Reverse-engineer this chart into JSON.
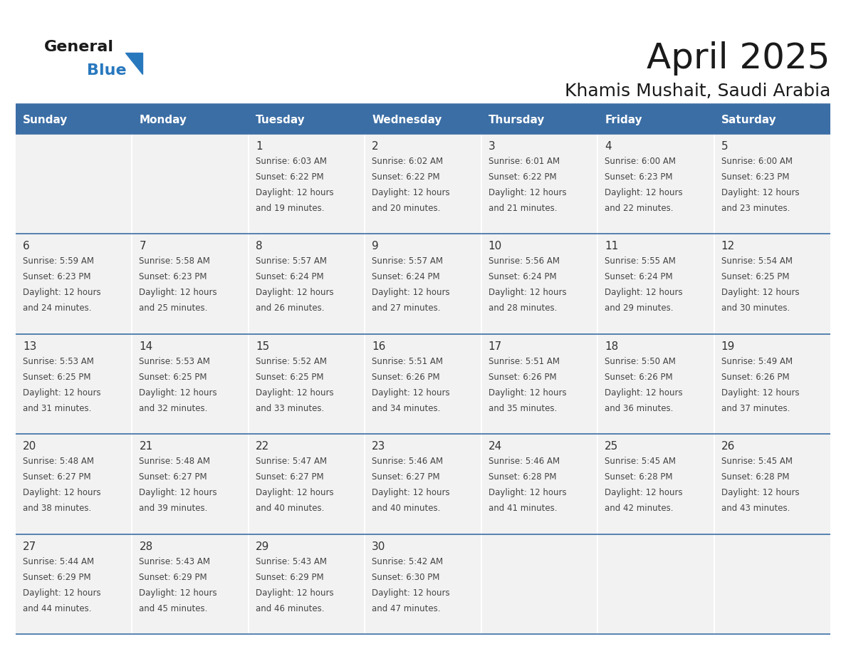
{
  "title": "April 2025",
  "subtitle": "Khamis Mushait, Saudi Arabia",
  "header_color": "#3B6EA5",
  "header_text_color": "#FFFFFF",
  "bg_color": "#FFFFFF",
  "cell_bg": "#F2F2F2",
  "day_names": [
    "Sunday",
    "Monday",
    "Tuesday",
    "Wednesday",
    "Thursday",
    "Friday",
    "Saturday"
  ],
  "text_color": "#333333",
  "line_color": "#3B6EA5",
  "logo_general_color": "#1a1a1a",
  "logo_blue_color": "#2878BE",
  "logo_triangle_color": "#2878BE",
  "title_fontsize": 36,
  "subtitle_fontsize": 18,
  "header_fontsize": 11,
  "daynum_fontsize": 11,
  "cell_fontsize": 8.5,
  "calendar_data": [
    [
      {
        "day": null,
        "text": ""
      },
      {
        "day": null,
        "text": ""
      },
      {
        "day": 1,
        "text": "Sunrise: 6:03 AM\nSunset: 6:22 PM\nDaylight: 12 hours\nand 19 minutes."
      },
      {
        "day": 2,
        "text": "Sunrise: 6:02 AM\nSunset: 6:22 PM\nDaylight: 12 hours\nand 20 minutes."
      },
      {
        "day": 3,
        "text": "Sunrise: 6:01 AM\nSunset: 6:22 PM\nDaylight: 12 hours\nand 21 minutes."
      },
      {
        "day": 4,
        "text": "Sunrise: 6:00 AM\nSunset: 6:23 PM\nDaylight: 12 hours\nand 22 minutes."
      },
      {
        "day": 5,
        "text": "Sunrise: 6:00 AM\nSunset: 6:23 PM\nDaylight: 12 hours\nand 23 minutes."
      }
    ],
    [
      {
        "day": 6,
        "text": "Sunrise: 5:59 AM\nSunset: 6:23 PM\nDaylight: 12 hours\nand 24 minutes."
      },
      {
        "day": 7,
        "text": "Sunrise: 5:58 AM\nSunset: 6:23 PM\nDaylight: 12 hours\nand 25 minutes."
      },
      {
        "day": 8,
        "text": "Sunrise: 5:57 AM\nSunset: 6:24 PM\nDaylight: 12 hours\nand 26 minutes."
      },
      {
        "day": 9,
        "text": "Sunrise: 5:57 AM\nSunset: 6:24 PM\nDaylight: 12 hours\nand 27 minutes."
      },
      {
        "day": 10,
        "text": "Sunrise: 5:56 AM\nSunset: 6:24 PM\nDaylight: 12 hours\nand 28 minutes."
      },
      {
        "day": 11,
        "text": "Sunrise: 5:55 AM\nSunset: 6:24 PM\nDaylight: 12 hours\nand 29 minutes."
      },
      {
        "day": 12,
        "text": "Sunrise: 5:54 AM\nSunset: 6:25 PM\nDaylight: 12 hours\nand 30 minutes."
      }
    ],
    [
      {
        "day": 13,
        "text": "Sunrise: 5:53 AM\nSunset: 6:25 PM\nDaylight: 12 hours\nand 31 minutes."
      },
      {
        "day": 14,
        "text": "Sunrise: 5:53 AM\nSunset: 6:25 PM\nDaylight: 12 hours\nand 32 minutes."
      },
      {
        "day": 15,
        "text": "Sunrise: 5:52 AM\nSunset: 6:25 PM\nDaylight: 12 hours\nand 33 minutes."
      },
      {
        "day": 16,
        "text": "Sunrise: 5:51 AM\nSunset: 6:26 PM\nDaylight: 12 hours\nand 34 minutes."
      },
      {
        "day": 17,
        "text": "Sunrise: 5:51 AM\nSunset: 6:26 PM\nDaylight: 12 hours\nand 35 minutes."
      },
      {
        "day": 18,
        "text": "Sunrise: 5:50 AM\nSunset: 6:26 PM\nDaylight: 12 hours\nand 36 minutes."
      },
      {
        "day": 19,
        "text": "Sunrise: 5:49 AM\nSunset: 6:26 PM\nDaylight: 12 hours\nand 37 minutes."
      }
    ],
    [
      {
        "day": 20,
        "text": "Sunrise: 5:48 AM\nSunset: 6:27 PM\nDaylight: 12 hours\nand 38 minutes."
      },
      {
        "day": 21,
        "text": "Sunrise: 5:48 AM\nSunset: 6:27 PM\nDaylight: 12 hours\nand 39 minutes."
      },
      {
        "day": 22,
        "text": "Sunrise: 5:47 AM\nSunset: 6:27 PM\nDaylight: 12 hours\nand 40 minutes."
      },
      {
        "day": 23,
        "text": "Sunrise: 5:46 AM\nSunset: 6:27 PM\nDaylight: 12 hours\nand 40 minutes."
      },
      {
        "day": 24,
        "text": "Sunrise: 5:46 AM\nSunset: 6:28 PM\nDaylight: 12 hours\nand 41 minutes."
      },
      {
        "day": 25,
        "text": "Sunrise: 5:45 AM\nSunset: 6:28 PM\nDaylight: 12 hours\nand 42 minutes."
      },
      {
        "day": 26,
        "text": "Sunrise: 5:45 AM\nSunset: 6:28 PM\nDaylight: 12 hours\nand 43 minutes."
      }
    ],
    [
      {
        "day": 27,
        "text": "Sunrise: 5:44 AM\nSunset: 6:29 PM\nDaylight: 12 hours\nand 44 minutes."
      },
      {
        "day": 28,
        "text": "Sunrise: 5:43 AM\nSunset: 6:29 PM\nDaylight: 12 hours\nand 45 minutes."
      },
      {
        "day": 29,
        "text": "Sunrise: 5:43 AM\nSunset: 6:29 PM\nDaylight: 12 hours\nand 46 minutes."
      },
      {
        "day": 30,
        "text": "Sunrise: 5:42 AM\nSunset: 6:30 PM\nDaylight: 12 hours\nand 47 minutes."
      },
      {
        "day": null,
        "text": ""
      },
      {
        "day": null,
        "text": ""
      },
      {
        "day": null,
        "text": ""
      }
    ]
  ]
}
